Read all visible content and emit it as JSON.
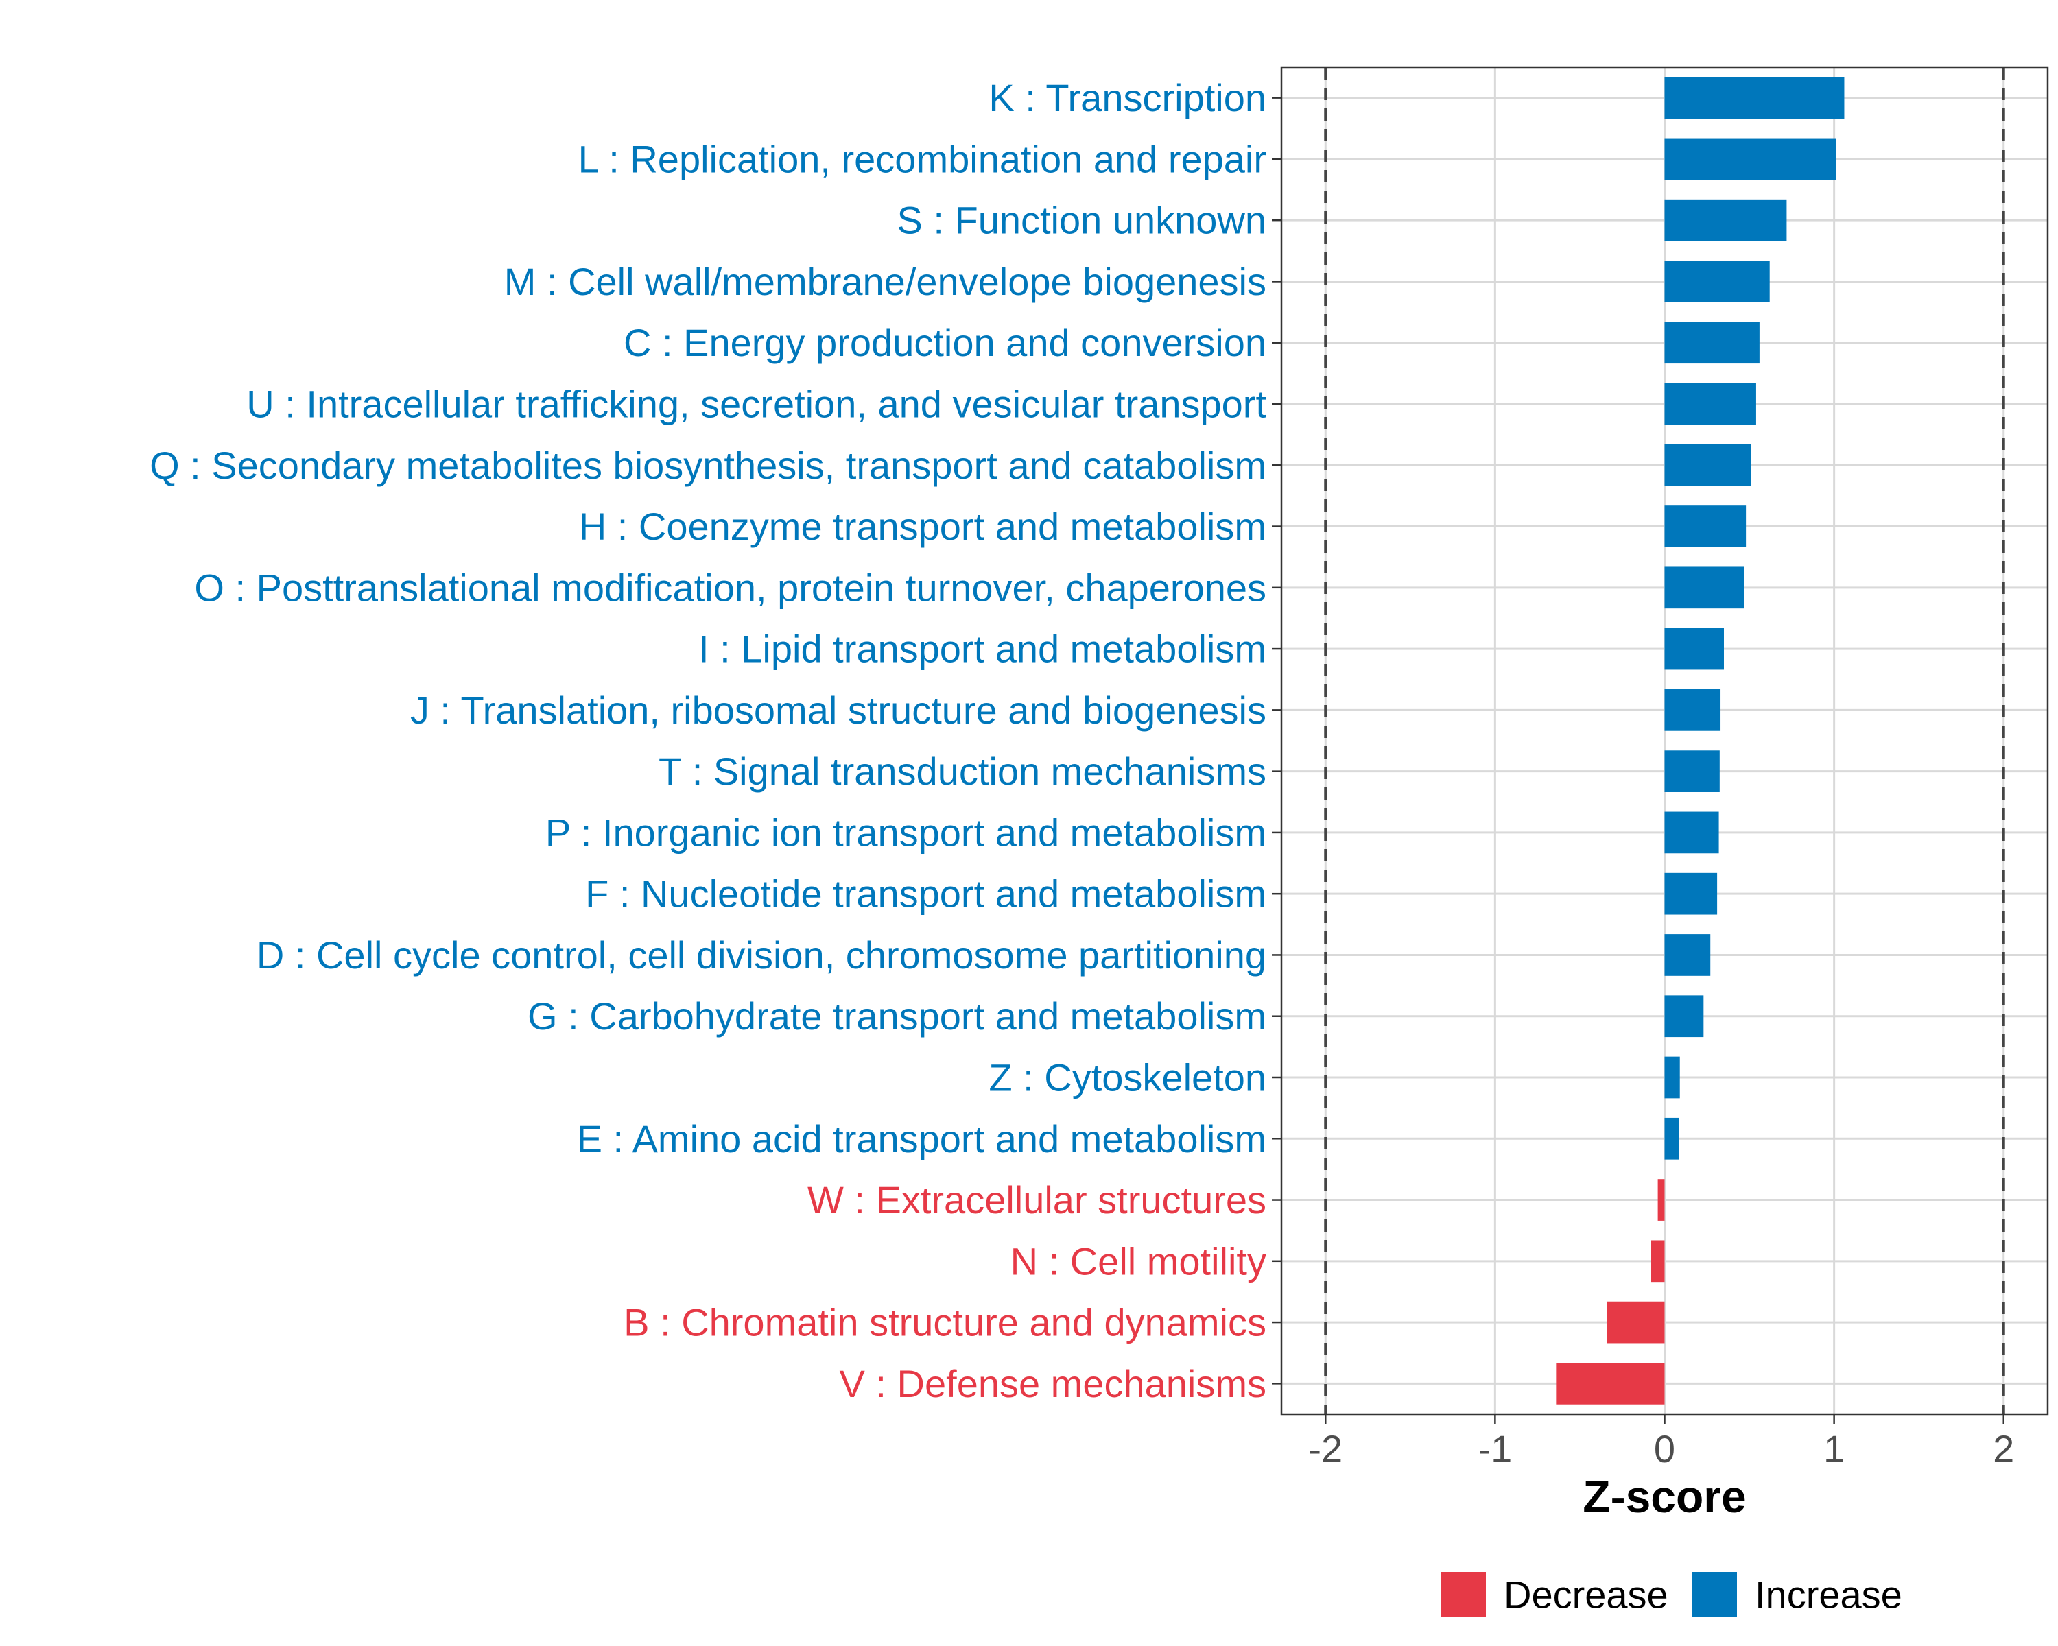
{
  "chart_data": {
    "type": "bar",
    "orientation": "horizontal",
    "xlabel": "Z-score",
    "ylabel": "",
    "xlim": [
      -2.26,
      2.26
    ],
    "xticks": [
      -2,
      -1,
      0,
      1,
      2
    ],
    "xtick_labels": [
      "-2",
      "-1",
      "0",
      "1",
      "2"
    ],
    "reference_lines": [
      -2,
      2
    ],
    "grid": true,
    "legend_position": "bottom",
    "categories": [
      "K : Transcription",
      "L : Replication, recombination and repair",
      "S : Function unknown",
      "M : Cell wall/membrane/envelope biogenesis",
      "C : Energy production and conversion",
      "U : Intracellular trafficking, secretion, and vesicular transport",
      "Q : Secondary metabolites biosynthesis, transport and catabolism",
      "H : Coenzyme transport and metabolism",
      "O : Posttranslational modification, protein turnover, chaperones",
      "I : Lipid transport and metabolism",
      "J : Translation, ribosomal structure and biogenesis",
      "T : Signal transduction mechanisms",
      "P : Inorganic ion transport and metabolism",
      "F : Nucleotide transport and metabolism",
      "D : Cell cycle control, cell division, chromosome partitioning",
      "G : Carbohydrate transport and metabolism",
      "Z : Cytoskeleton",
      "E : Amino acid transport and metabolism",
      "W : Extracellular structures",
      "N : Cell motility",
      "B : Chromatin structure and dynamics",
      "V : Defense mechanisms"
    ],
    "values": [
      1.06,
      1.01,
      0.72,
      0.62,
      0.56,
      0.54,
      0.51,
      0.48,
      0.47,
      0.35,
      0.33,
      0.325,
      0.32,
      0.31,
      0.27,
      0.23,
      0.09,
      0.085,
      -0.04,
      -0.08,
      -0.34,
      -0.64
    ],
    "groups": [
      "Increase",
      "Increase",
      "Increase",
      "Increase",
      "Increase",
      "Increase",
      "Increase",
      "Increase",
      "Increase",
      "Increase",
      "Increase",
      "Increase",
      "Increase",
      "Increase",
      "Increase",
      "Increase",
      "Increase",
      "Increase",
      "Decrease",
      "Decrease",
      "Decrease",
      "Decrease"
    ],
    "legend": [
      {
        "name": "Decrease",
        "color": "#E63946"
      },
      {
        "name": "Increase",
        "color": "#0077BB"
      }
    ]
  }
}
